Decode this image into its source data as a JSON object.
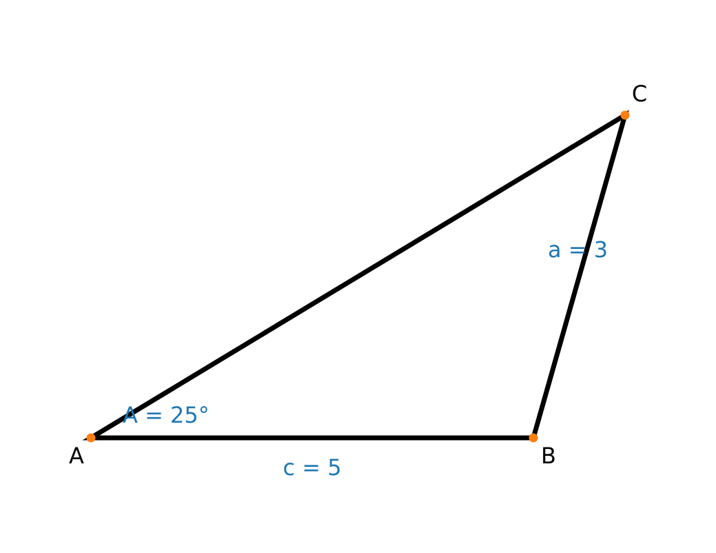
{
  "vertices": [
    {
      "label": "A"
    },
    {
      "label": "B"
    },
    {
      "label": "C"
    }
  ],
  "annotations": [
    "A = 25°",
    "c = 5",
    "a = 3"
  ]
}
